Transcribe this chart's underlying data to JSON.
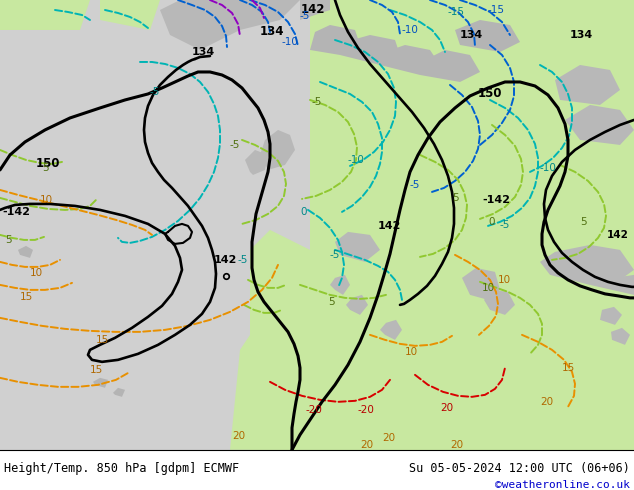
{
  "title_left": "Height/Temp. 850 hPa [gdpm] ECMWF",
  "title_right": "Su 05-05-2024 12:00 UTC (06+06)",
  "credit": "©weatheronline.co.uk",
  "bg_gray": "#d0d0d0",
  "bg_green_light": "#c8e8a0",
  "bg_green_warm": "#b0e890",
  "contour_black": "#000000",
  "contour_cyan": "#00b4b4",
  "contour_green": "#90c830",
  "contour_orange": "#e89000",
  "contour_red": "#d80000",
  "contour_blue": "#0060d0",
  "contour_purple": "#9000c0",
  "lc_black": "#000000",
  "lc_cyan": "#008888",
  "lc_green": "#507010",
  "lc_orange": "#b06800",
  "lc_red": "#b80000",
  "lc_blue": "#0050c0",
  "fig_width": 6.34,
  "fig_height": 4.9,
  "dpi": 100
}
